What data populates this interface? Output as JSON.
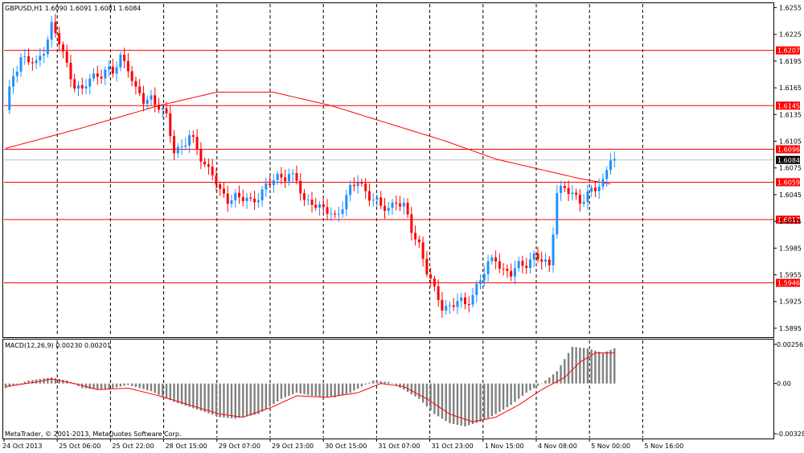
{
  "window": {
    "symbol_line": "GBPUSD,H1  1.6090 1.6091 1.6081 1.6084"
  },
  "macd_header": "MACD(12,26,9) 0.00230 0.00201",
  "copyright": "MetaTrader, © 2001-2013, MetaQuotes Software Corp.",
  "colors": {
    "bull": "#1e90ff",
    "bear": "#ff0000",
    "level_line": "#ff0000",
    "ma_line": "#ff0000",
    "macd_hist": "#808080",
    "signal_line": "#ff0000",
    "grid": "#000000",
    "current_price_bg": "#000000"
  },
  "chart_data": [
    {
      "type": "candlestick",
      "symbol": "GBPUSD",
      "timeframe": "H1",
      "ylim": [
        1.5885,
        1.626
      ],
      "y_ticks": [
        "1.6255",
        "1.6225",
        "1.6195",
        "1.6165",
        "1.6135",
        "1.6105",
        "1.6075",
        "1.6045",
        "1.6015",
        "1.5985",
        "1.5955",
        "1.5925",
        "1.5895"
      ],
      "x_ticks": [
        "24 Oct 2013",
        "25 Oct 06:00",
        "25 Oct 22:00",
        "28 Oct 15:00",
        "29 Oct 07:00",
        "29 Oct 23:00",
        "30 Oct 15:00",
        "31 Oct 07:00",
        "31 Oct 23:00",
        "1 Nov 15:00",
        "4 Nov 08:00",
        "5 Nov 00:00",
        "5 Nov 16:00"
      ],
      "horizontal_levels": [
        "1.6207",
        "1.6145",
        "1.6096",
        "1.6059",
        "1.6017",
        "1.5946"
      ],
      "current_price": "1.6084",
      "close_path": [
        [
          0,
          1.614
        ],
        [
          2,
          1.618
        ],
        [
          4,
          1.62
        ],
        [
          6,
          1.6195
        ],
        [
          8,
          1.619
        ],
        [
          10,
          1.621
        ],
        [
          12,
          1.6235
        ],
        [
          14,
          1.6215
        ],
        [
          16,
          1.619
        ],
        [
          18,
          1.617
        ],
        [
          20,
          1.616
        ],
        [
          22,
          1.6175
        ],
        [
          24,
          1.618
        ],
        [
          26,
          1.6185
        ],
        [
          28,
          1.618
        ],
        [
          30,
          1.62
        ],
        [
          32,
          1.619
        ],
        [
          34,
          1.616
        ],
        [
          36,
          1.615
        ],
        [
          38,
          1.6155
        ],
        [
          40,
          1.6145
        ],
        [
          42,
          1.613
        ],
        [
          44,
          1.6095
        ],
        [
          46,
          1.61
        ],
        [
          48,
          1.611
        ],
        [
          50,
          1.6095
        ],
        [
          52,
          1.608
        ],
        [
          54,
          1.607
        ],
        [
          56,
          1.6045
        ],
        [
          58,
          1.604
        ],
        [
          60,
          1.6045
        ],
        [
          62,
          1.604
        ],
        [
          64,
          1.6035
        ],
        [
          66,
          1.6045
        ],
        [
          68,
          1.6055
        ],
        [
          70,
          1.606
        ],
        [
          72,
          1.6065
        ],
        [
          74,
          1.607
        ],
        [
          76,
          1.606
        ],
        [
          78,
          1.6035
        ],
        [
          80,
          1.604
        ],
        [
          82,
          1.603
        ],
        [
          84,
          1.6025
        ],
        [
          86,
          1.602
        ],
        [
          88,
          1.6035
        ],
        [
          90,
          1.605
        ],
        [
          92,
          1.606
        ],
        [
          94,
          1.605
        ],
        [
          96,
          1.604
        ],
        [
          98,
          1.603
        ],
        [
          100,
          1.603
        ],
        [
          102,
          1.604
        ],
        [
          104,
          1.603
        ],
        [
          106,
          1.6005
        ],
        [
          108,
          1.599
        ],
        [
          110,
          1.596
        ],
        [
          112,
          1.5935
        ],
        [
          114,
          1.592
        ],
        [
          116,
          1.592
        ],
        [
          118,
          1.5925
        ],
        [
          120,
          1.592
        ],
        [
          122,
          1.5935
        ],
        [
          124,
          1.595
        ],
        [
          126,
          1.5965
        ],
        [
          128,
          1.5975
        ],
        [
          130,
          1.596
        ],
        [
          132,
          1.5955
        ],
        [
          134,
          1.5965
        ],
        [
          136,
          1.597
        ],
        [
          138,
          1.5975
        ],
        [
          140,
          1.597
        ],
        [
          142,
          1.5965
        ],
        [
          144,
          1.605
        ],
        [
          146,
          1.605
        ],
        [
          148,
          1.6045
        ],
        [
          150,
          1.604
        ],
        [
          152,
          1.6045
        ],
        [
          154,
          1.605
        ],
        [
          156,
          1.606
        ],
        [
          158,
          1.609
        ],
        [
          159,
          1.6084
        ]
      ],
      "moving_average": [
        [
          0,
          1.6097
        ],
        [
          20,
          1.612
        ],
        [
          40,
          1.6145
        ],
        [
          55,
          1.616
        ],
        [
          70,
          1.616
        ],
        [
          85,
          1.6145
        ],
        [
          100,
          1.6125
        ],
        [
          115,
          1.6105
        ],
        [
          128,
          1.6085
        ],
        [
          138,
          1.6075
        ],
        [
          150,
          1.6063
        ],
        [
          158,
          1.6057
        ]
      ]
    },
    {
      "type": "histogram",
      "name": "MACD(12,26,9)",
      "ylim": [
        -0.00328,
        0.00256
      ],
      "y_ticks": [
        "0.00256",
        "0.00",
        "-0.00328"
      ],
      "macd_path": [
        [
          0,
          -0.0003
        ],
        [
          6,
          0.0002
        ],
        [
          12,
          0.0004
        ],
        [
          16,
          0.0002
        ],
        [
          20,
          -0.0003
        ],
        [
          26,
          -0.0004
        ],
        [
          32,
          -0.0001
        ],
        [
          38,
          -0.0005
        ],
        [
          44,
          -0.0012
        ],
        [
          50,
          -0.0017
        ],
        [
          56,
          -0.0022
        ],
        [
          60,
          -0.0023
        ],
        [
          66,
          -0.002
        ],
        [
          72,
          -0.001
        ],
        [
          76,
          -0.0006
        ],
        [
          80,
          -0.0008
        ],
        [
          86,
          -0.0009
        ],
        [
          90,
          -0.0006
        ],
        [
          96,
          0.0002
        ],
        [
          100,
          0.0001
        ],
        [
          104,
          -0.0004
        ],
        [
          108,
          -0.001
        ],
        [
          112,
          -0.002
        ],
        [
          116,
          -0.0026
        ],
        [
          120,
          -0.0028
        ],
        [
          124,
          -0.0025
        ],
        [
          128,
          -0.002
        ],
        [
          132,
          -0.0014
        ],
        [
          136,
          -0.0006
        ],
        [
          140,
          0.0
        ],
        [
          144,
          0.0008
        ],
        [
          148,
          0.0024
        ],
        [
          152,
          0.0023
        ],
        [
          156,
          0.002
        ],
        [
          159,
          0.0023
        ]
      ],
      "signal_path": [
        [
          0,
          -0.0002
        ],
        [
          8,
          0.0001
        ],
        [
          12,
          0.0003
        ],
        [
          18,
          0.0
        ],
        [
          24,
          -0.0004
        ],
        [
          32,
          -0.0003
        ],
        [
          40,
          -0.0008
        ],
        [
          48,
          -0.0014
        ],
        [
          56,
          -0.002
        ],
        [
          62,
          -0.0022
        ],
        [
          70,
          -0.0015
        ],
        [
          76,
          -0.0008
        ],
        [
          84,
          -0.0009
        ],
        [
          92,
          -0.0006
        ],
        [
          98,
          0.0
        ],
        [
          104,
          -0.0002
        ],
        [
          110,
          -0.001
        ],
        [
          116,
          -0.002
        ],
        [
          122,
          -0.0025
        ],
        [
          128,
          -0.0022
        ],
        [
          134,
          -0.0014
        ],
        [
          140,
          -0.0004
        ],
        [
          146,
          0.0004
        ],
        [
          150,
          0.0014
        ],
        [
          154,
          0.002
        ],
        [
          159,
          0.002
        ]
      ]
    }
  ]
}
